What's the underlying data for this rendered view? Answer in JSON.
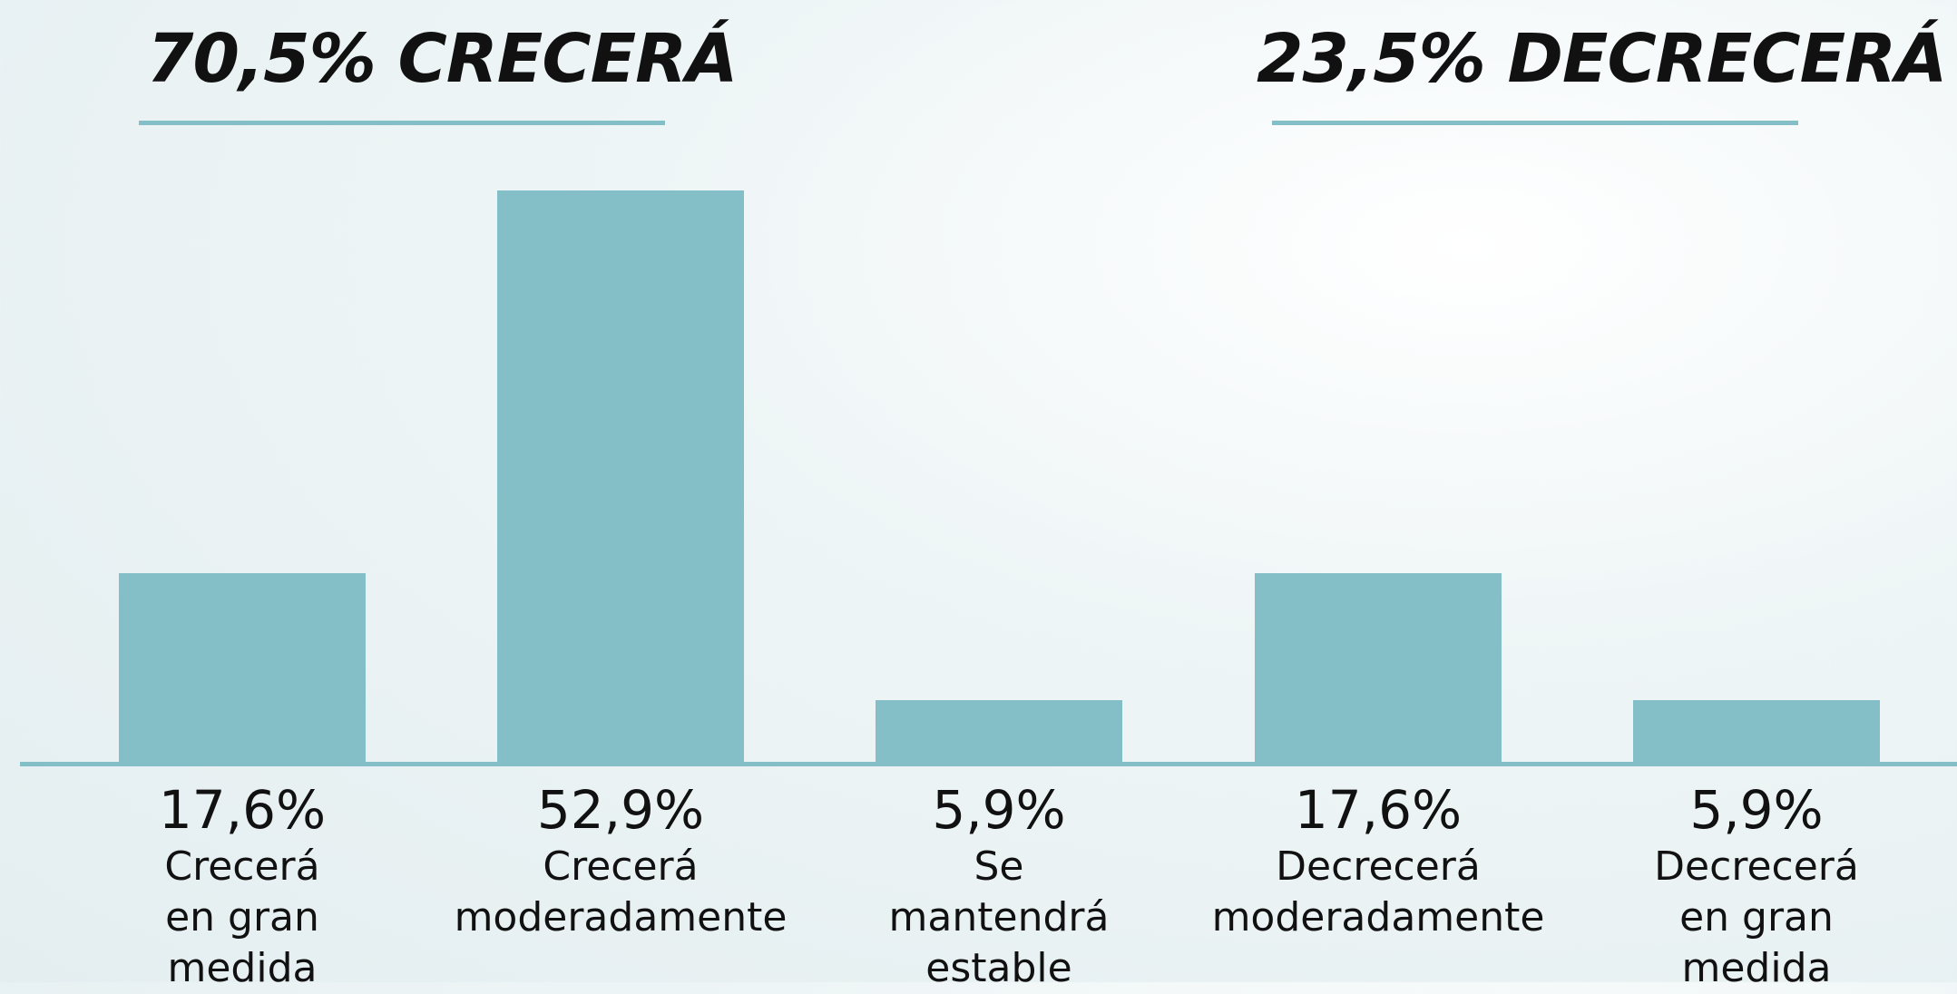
{
  "chart_data": {
    "type": "bar",
    "annotations": [
      "70,5% CRECERÁ",
      "23,5% DECRECERÁ"
    ],
    "categories": [
      "Crecerá\nen gran\nmedida",
      "Crecerá\nmoderadamente",
      "Se\nmantendrá\nestable",
      "Decrecerá\nmoderadamente",
      "Decrecerá\nen gran\nmedida"
    ],
    "values": [
      17.6,
      52.9,
      5.9,
      17.6,
      5.9
    ],
    "value_labels": [
      "17,6%",
      "52,9%",
      "5,9%",
      "17,6%",
      "5,9%"
    ],
    "color": "#84bfc7"
  }
}
